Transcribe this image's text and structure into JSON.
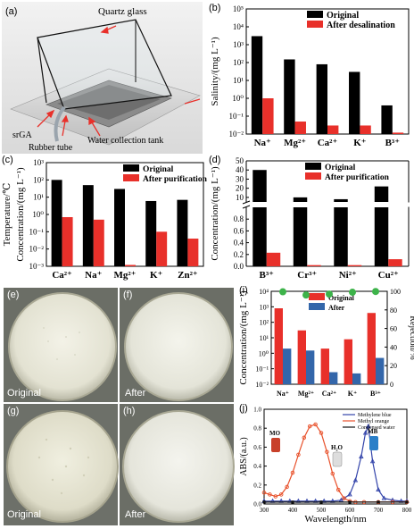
{
  "panel_a": {
    "label": "(a)",
    "callouts": {
      "quartz": "Quartz glass",
      "srga": "srGA",
      "rubber": "Rubber tube",
      "tank": "Water collection tank"
    }
  },
  "panel_e": {
    "label": "(e)",
    "caption": "Original"
  },
  "panel_f": {
    "label": "(f)",
    "caption": "After"
  },
  "panel_g": {
    "label": "(g)",
    "caption": "Original"
  },
  "panel_h": {
    "label": "(h)",
    "caption": "After"
  },
  "colors": {
    "black": "#000000",
    "red": "#e8302a",
    "blue": "#3366aa",
    "green": "#3db34a",
    "orange": "#e8502a"
  },
  "chart_data": [
    {
      "id": "b",
      "panel_label": "(b)",
      "type": "bar",
      "ylabel": "Salinity/(mg L⁻¹)",
      "yscale": "log",
      "ylim": [
        0.01,
        100000
      ],
      "yticks": [
        "10⁻²",
        "10⁻¹",
        "10⁰",
        "10¹",
        "10²",
        "10³",
        "10⁴",
        "10⁵"
      ],
      "categories": [
        "Na⁺",
        "Mg²⁺",
        "Ca²⁺",
        "K⁺",
        "B³⁺"
      ],
      "legend_position": "top-right",
      "series": [
        {
          "name": "Original",
          "color": "#000000",
          "values": [
            3000,
            150,
            80,
            30,
            0.4
          ]
        },
        {
          "name": "After desalination",
          "color": "#e8302a",
          "values": [
            1.0,
            0.05,
            0.03,
            0.03,
            0.012
          ]
        }
      ]
    },
    {
      "id": "c",
      "panel_label": "(c)",
      "type": "bar",
      "ylabel": "Concentration/(mg L⁻¹)",
      "ylabel_extra": "Temperature/℃",
      "yscale": "log",
      "ylim": [
        0.001,
        1000
      ],
      "yticks": [
        "10⁻³",
        "10⁻²",
        "10⁻¹",
        "10⁰",
        "10¹",
        "10²",
        "10³"
      ],
      "categories": [
        "Ca²⁺",
        "Na⁺",
        "Mg²⁺",
        "K⁺",
        "Zn²⁺"
      ],
      "legend_position": "top-right",
      "series": [
        {
          "name": "Original",
          "color": "#000000",
          "values": [
            100,
            50,
            30,
            6,
            7
          ]
        },
        {
          "name": "After purification",
          "color": "#e8302a",
          "values": [
            0.7,
            0.5,
            0.0012,
            0.1,
            0.04
          ]
        }
      ]
    },
    {
      "id": "d",
      "panel_label": "(d)",
      "type": "bar",
      "ylabel": "Concentration/(mg L⁻¹)",
      "yscale": "broken-linear",
      "upper_range": [
        5,
        50
      ],
      "lower_range": [
        0,
        1.0
      ],
      "upper_ticks": [
        "10",
        "20",
        "30",
        "40",
        "50"
      ],
      "lower_ticks": [
        "0.0",
        "0.2",
        "0.4",
        "0.6",
        "0.8"
      ],
      "categories": [
        "B³⁺",
        "Cr³⁺",
        "Ni²⁺",
        "Cu²⁺"
      ],
      "legend_position": "top-right",
      "series": [
        {
          "name": "Original",
          "color": "#000000",
          "values": [
            40,
            10,
            8,
            22
          ]
        },
        {
          "name": "After purification",
          "color": "#e8302a",
          "values": [
            0.23,
            0.02,
            0.02,
            0.12
          ]
        }
      ]
    },
    {
      "id": "i",
      "panel_label": "(i)",
      "type": "bar",
      "ylabel": "Concentration/(mg L⁻¹)",
      "ylabel_right": "Rejection/%",
      "yscale": "log",
      "ylim": [
        0.01,
        10000
      ],
      "yticks": [
        "10⁻²",
        "10⁻¹",
        "10⁰",
        "10¹",
        "10²",
        "10³",
        "10⁴"
      ],
      "right_ylim": [
        0,
        100
      ],
      "right_ticks": [
        "0",
        "20",
        "40",
        "60",
        "80",
        "100"
      ],
      "categories": [
        "Na⁺",
        "Mg²⁺",
        "Ca²⁺",
        "K⁺",
        "B³⁺"
      ],
      "legend_position": "top-center",
      "series": [
        {
          "name": "Original",
          "color": "#e8302a",
          "values": [
            800,
            30,
            2,
            8,
            400
          ]
        },
        {
          "name": "After",
          "color": "#3366aa",
          "values": [
            2,
            1.5,
            0.06,
            0.05,
            0.5
          ]
        }
      ],
      "rejection": {
        "color": "#3db34a",
        "values": [
          99.5,
          96,
          97,
          99,
          99.8
        ]
      }
    },
    {
      "id": "j",
      "panel_label": "(j)",
      "type": "line",
      "xlabel": "Wavelength/nm",
      "ylabel": "ABS/(a.u.)",
      "xlim": [
        300,
        800
      ],
      "ylim": [
        0,
        1.0
      ],
      "xticks": [
        "300",
        "400",
        "500",
        "600",
        "700",
        "800"
      ],
      "yticks": [
        "0.0",
        "0.2",
        "0.4",
        "0.6",
        "0.8",
        "1.0"
      ],
      "legend_position": "top-right",
      "inset_labels": [
        "MO",
        "H₂O",
        "MB"
      ],
      "series": [
        {
          "name": "Methylene blue",
          "color": "#3344aa",
          "x": [
            300,
            330,
            360,
            390,
            420,
            450,
            480,
            510,
            540,
            570,
            600,
            620,
            640,
            655,
            665,
            680,
            700,
            720,
            750,
            780,
            800
          ],
          "y": [
            0.03,
            0.03,
            0.03,
            0.03,
            0.03,
            0.03,
            0.03,
            0.03,
            0.03,
            0.04,
            0.1,
            0.25,
            0.5,
            0.75,
            0.82,
            0.45,
            0.15,
            0.06,
            0.04,
            0.03,
            0.03
          ]
        },
        {
          "name": "Methyl orange",
          "color": "#e8502a",
          "x": [
            300,
            320,
            340,
            360,
            380,
            400,
            420,
            440,
            460,
            480,
            500,
            520,
            540,
            560,
            580,
            600,
            620,
            650,
            700,
            750,
            800
          ],
          "y": [
            0.12,
            0.1,
            0.08,
            0.1,
            0.18,
            0.33,
            0.52,
            0.7,
            0.82,
            0.84,
            0.75,
            0.55,
            0.32,
            0.15,
            0.06,
            0.03,
            0.02,
            0.02,
            0.02,
            0.02,
            0.02
          ]
        },
        {
          "name": "Condensed water",
          "color": "#111111",
          "x": [
            300,
            400,
            500,
            600,
            700,
            800
          ],
          "y": [
            0.02,
            0.02,
            0.02,
            0.02,
            0.02,
            0.02
          ]
        }
      ]
    }
  ]
}
